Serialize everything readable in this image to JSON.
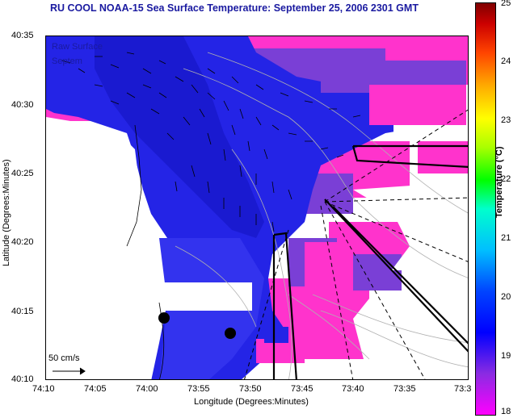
{
  "title": "RU COOL  NOAA-15  Sea Surface Temperature:  September 25, 2006 2301 GMT",
  "overlay": {
    "line1": "Raw Surface",
    "line2": "Septem"
  },
  "axes": {
    "xlabel": "Longitude (Degrees:Minutes)",
    "ylabel": "Latitude (Degrees:Minutes)",
    "xticks": [
      "74:10",
      "74:05",
      "74:00",
      "73:55",
      "73:50",
      "73:45",
      "73:40",
      "73:35",
      "73:3"
    ],
    "yticks": [
      "40:35",
      "40:30",
      "40:25",
      "40:20",
      "40:15",
      "40:10"
    ]
  },
  "scale": {
    "label": "50 cm/s"
  },
  "colorbar": {
    "title": "Temperature (°C)",
    "ticks": [
      "25",
      "24",
      "23",
      "22",
      "21",
      "20",
      "19",
      "18"
    ],
    "range": [
      18,
      25
    ],
    "colors": [
      "#ff00ff",
      "#0000ff",
      "#00ffcc",
      "#00ff00",
      "#ffff00",
      "#ff4400",
      "#800000"
    ]
  }
}
